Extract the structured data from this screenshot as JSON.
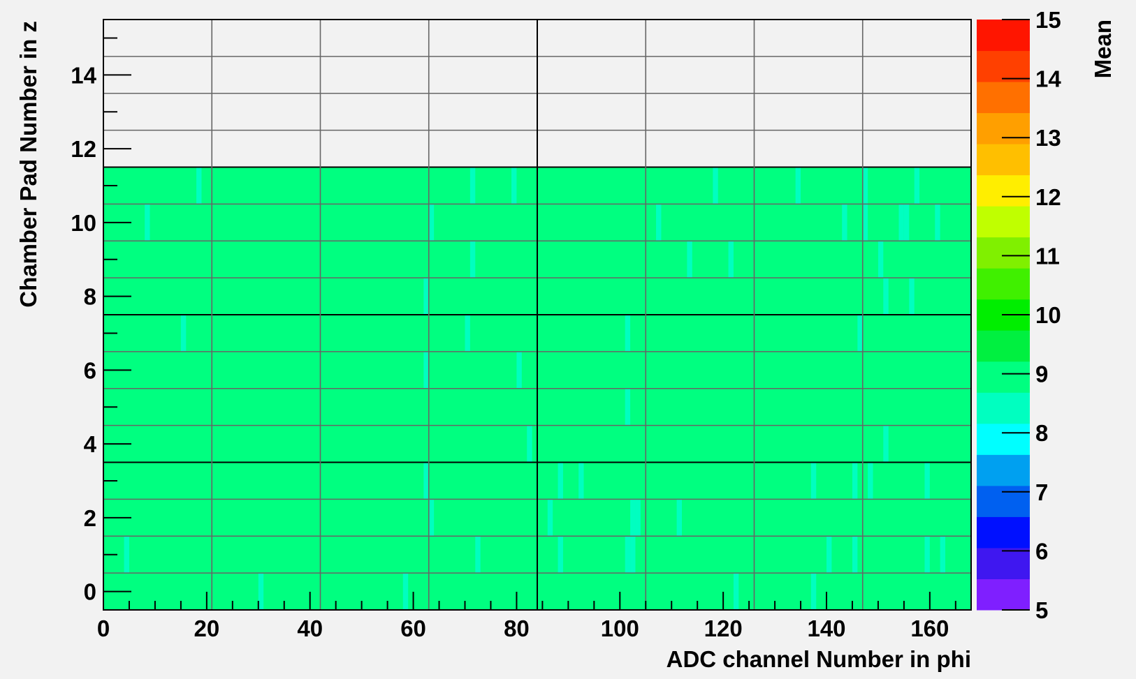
{
  "chart_data": {
    "type": "heatmap",
    "xlabel": "ADC channel Number in phi",
    "ylabel": "Chamber Pad Number in z",
    "zlabel": "Mean",
    "xlim": [
      0,
      168
    ],
    "ylim": [
      -0.5,
      15.5
    ],
    "zlim": [
      5,
      15
    ],
    "x_ticks": [
      0,
      20,
      40,
      60,
      80,
      100,
      120,
      140,
      160
    ],
    "y_ticks": [
      0,
      2,
      4,
      6,
      8,
      10,
      12,
      14
    ],
    "z_ticks": [
      5,
      6,
      7,
      8,
      9,
      10,
      11,
      12,
      13,
      14,
      15
    ],
    "x_tick_labels": [
      "0",
      "20",
      "40",
      "60",
      "80",
      "100",
      "120",
      "140",
      "160"
    ],
    "y_tick_labels": [
      "0",
      "2",
      "4",
      "6",
      "8",
      "10",
      "12",
      "14"
    ],
    "z_tick_labels": [
      "5",
      "6",
      "7",
      "8",
      "9",
      "10",
      "11",
      "12",
      "13",
      "14",
      "15"
    ],
    "filled_rows": [
      0,
      11
    ],
    "baseline_value": 8.7,
    "highlight_value": 8.3,
    "highlighted_cells": [
      {
        "pad": 11,
        "channels": [
          18,
          71,
          79,
          118,
          134,
          147,
          157
        ]
      },
      {
        "pad": 10,
        "channels": [
          8,
          63,
          107,
          143,
          147,
          154,
          155,
          161
        ]
      },
      {
        "pad": 9,
        "channels": [
          71,
          113,
          121,
          150
        ]
      },
      {
        "pad": 8,
        "channels": [
          62,
          151,
          156
        ]
      },
      {
        "pad": 7,
        "channels": [
          15,
          70,
          101,
          146
        ]
      },
      {
        "pad": 6,
        "channels": [
          62,
          80
        ]
      },
      {
        "pad": 5,
        "channels": [
          101
        ]
      },
      {
        "pad": 4,
        "channels": [
          82,
          151
        ]
      },
      {
        "pad": 3,
        "channels": [
          62,
          88,
          92,
          137,
          145,
          148,
          159
        ]
      },
      {
        "pad": 2,
        "channels": [
          63,
          86,
          102,
          103,
          111
        ]
      },
      {
        "pad": 1,
        "channels": [
          4,
          72,
          88,
          101,
          102,
          140,
          145,
          159,
          162
        ]
      },
      {
        "pad": 0,
        "channels": [
          30,
          58,
          122,
          137
        ]
      }
    ],
    "palette": [
      "#7f1fff",
      "#3f17f0",
      "#0010ff",
      "#0060f0",
      "#00a0f0",
      "#00ffff",
      "#00ffc0",
      "#00ff80",
      "#00f040",
      "#00ee00",
      "#40f000",
      "#80f000",
      "#c0ff00",
      "#ffee00",
      "#ffbf00",
      "#ff9f00",
      "#ff7000",
      "#ff4000",
      "#ff1500"
    ],
    "grid": true
  }
}
